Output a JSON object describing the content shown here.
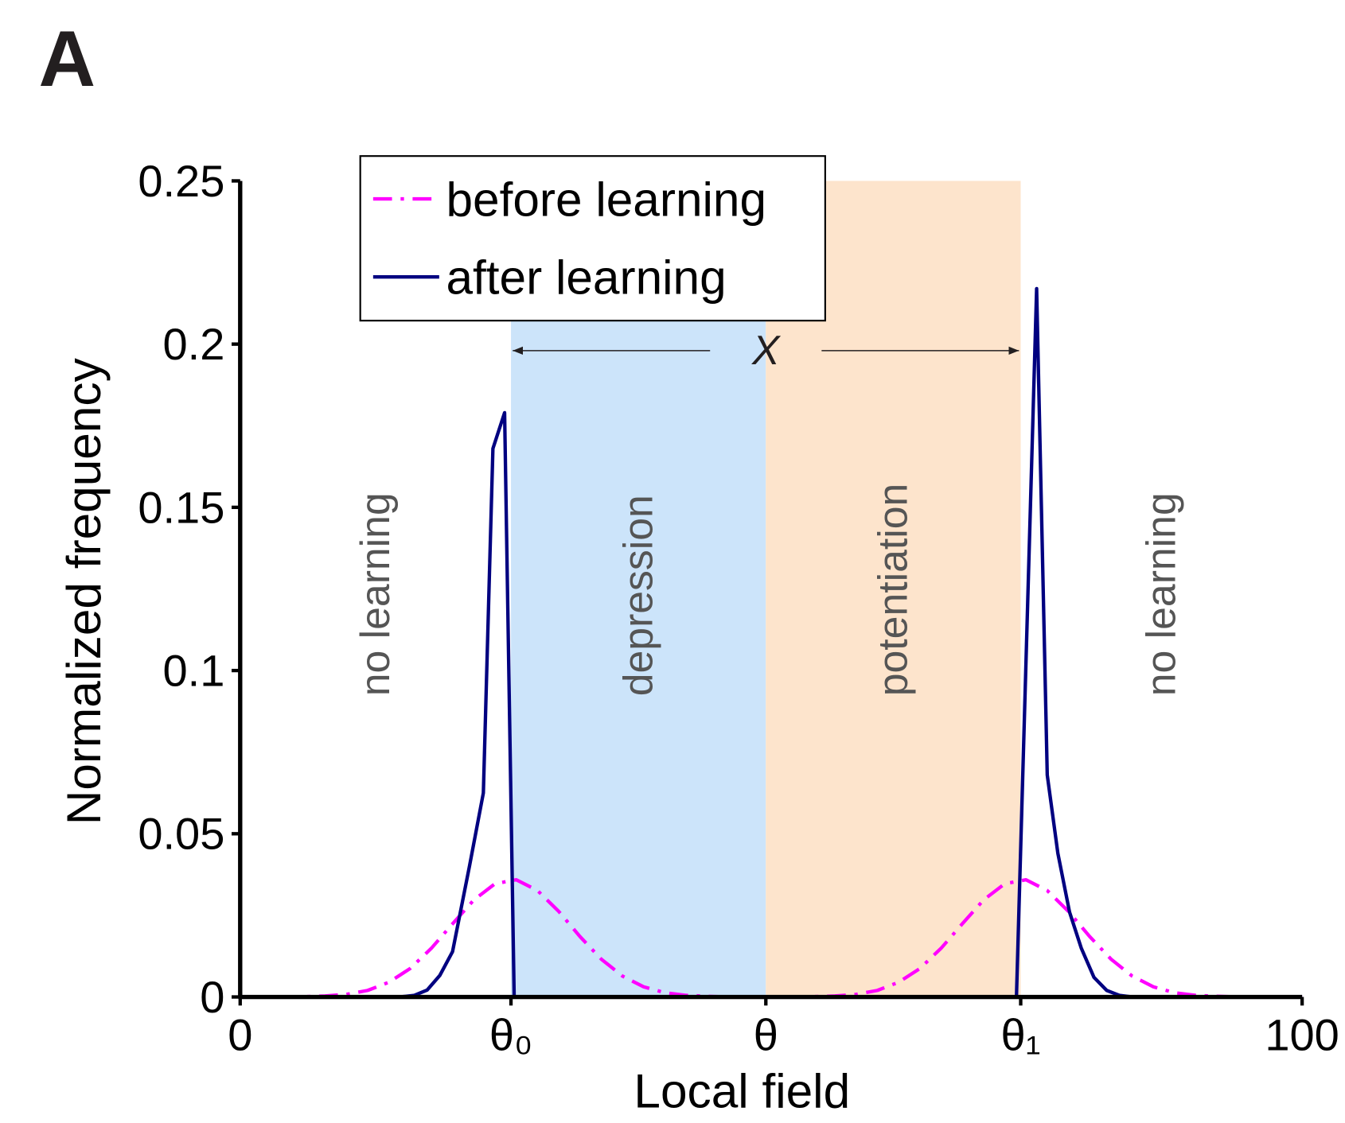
{
  "chart_data": {
    "type": "line",
    "panel_label": "A",
    "x_label": "Local field",
    "y_label": "Normalized frequency",
    "xlim": [
      0,
      100
    ],
    "ylim": [
      0,
      0.25
    ],
    "xticks": [
      0,
      {
        "value": 25.5,
        "label": "θ₀"
      },
      {
        "value": 49.5,
        "label": "θ"
      },
      {
        "value": 73.5,
        "label": "θ₁"
      },
      100
    ],
    "yticks": [
      0,
      0.05,
      0.1,
      0.15,
      0.2,
      0.25
    ],
    "legend": "upper left",
    "regions": [
      {
        "label": "no learning",
        "from": 0,
        "to": 25.5
      },
      {
        "label": "depression",
        "from": 25.5,
        "to": 49.5,
        "color": "#cce4fa"
      },
      {
        "label": "potentiation",
        "from": 49.5,
        "to": 73.5,
        "color": "#fde4cc"
      },
      {
        "label": "no learning",
        "from": 73.5,
        "to": 100
      }
    ],
    "span_annotation": {
      "label": "X",
      "from": 25.5,
      "to": 73.5,
      "y": 0.198
    },
    "series": [
      {
        "name": "before learning",
        "color": "#ff00ff",
        "style": "dashdot",
        "x": [
          0,
          2,
          4,
          6,
          8,
          10,
          12,
          14,
          16,
          18,
          20,
          22,
          24,
          26,
          28,
          30,
          32,
          34,
          36,
          38,
          40,
          42,
          44,
          46,
          48,
          50,
          52,
          54,
          56,
          58,
          60,
          62,
          64,
          66,
          68,
          70,
          72,
          74,
          76,
          78,
          80,
          82,
          84,
          86,
          88,
          90,
          92,
          94,
          96,
          98,
          100
        ],
        "values": [
          0,
          0,
          0,
          0.0001,
          0.0003,
          0.0008,
          0.002,
          0.0045,
          0.0087,
          0.0149,
          0.0224,
          0.0297,
          0.0347,
          0.0359,
          0.0326,
          0.0262,
          0.0185,
          0.0116,
          0.0064,
          0.0031,
          0.0013,
          0.0005,
          0.0002,
          0,
          0,
          0,
          0,
          0.0001,
          0.0003,
          0.0008,
          0.002,
          0.0045,
          0.0087,
          0.0149,
          0.0224,
          0.0297,
          0.0347,
          0.0359,
          0.0326,
          0.0262,
          0.0185,
          0.0116,
          0.0064,
          0.0031,
          0.0013,
          0.0005,
          0.0002,
          0,
          0,
          0,
          0
        ]
      },
      {
        "name": "after learning",
        "color": "#000080",
        "style": "solid",
        "x": [
          0,
          15,
          16.4,
          17.6,
          18.8,
          20,
          21.6,
          22.9,
          23.8,
          24.9,
          25.8,
          73.1,
          75,
          76,
          77,
          78.1,
          79.2,
          80.4,
          81.6,
          82.8,
          84,
          100
        ],
        "values": [
          0,
          0,
          0.0005,
          0.0021,
          0.0066,
          0.0139,
          0.0402,
          0.0625,
          0.168,
          0.179,
          0,
          0,
          0.217,
          0.068,
          0.044,
          0.026,
          0.015,
          0.006,
          0.002,
          0.0005,
          0,
          0
        ]
      }
    ]
  }
}
